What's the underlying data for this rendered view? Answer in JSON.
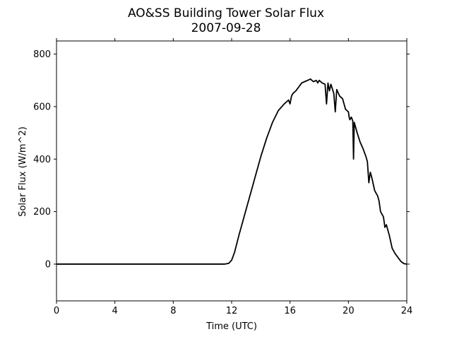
{
  "chart_data": {
    "type": "line",
    "title": "AO&SS Building Tower Solar Flux",
    "subtitle": "2007-09-28",
    "xlabel": "Time (UTC)",
    "ylabel": "Solar Flux (W/m^2)",
    "xlim": [
      0,
      24
    ],
    "ylim": [
      -140,
      850
    ],
    "xticks": [
      0,
      4,
      8,
      12,
      16,
      20,
      24
    ],
    "yticks": [
      0,
      200,
      400,
      600,
      800
    ],
    "grid": false,
    "line_color": "#000000",
    "series": [
      {
        "x": [
          0,
          4,
          8,
          11.5,
          11.8,
          12.0,
          12.2,
          12.5,
          12.8,
          13.2,
          13.6,
          14.0,
          14.4,
          14.8,
          15.2,
          15.6,
          15.9,
          16.0,
          16.1,
          16.2,
          16.4,
          16.6,
          16.8,
          17.0,
          17.2,
          17.4,
          17.6,
          17.8,
          17.9,
          18.0,
          18.2,
          18.4,
          18.5,
          18.6,
          18.7,
          18.8,
          19.0,
          19.1,
          19.2,
          19.4,
          19.6,
          19.8,
          20.0,
          20.05,
          20.1,
          20.2,
          20.3,
          20.35,
          20.4,
          20.6,
          20.8,
          21.0,
          21.2,
          21.3,
          21.4,
          21.5,
          21.6,
          21.8,
          22.0,
          22.1,
          22.2,
          22.4,
          22.5,
          22.6,
          22.8,
          23.0,
          23.2,
          23.4,
          23.6,
          23.8,
          24.0
        ],
        "y": [
          0,
          0,
          0,
          0,
          3,
          15,
          45,
          110,
          170,
          250,
          330,
          410,
          480,
          540,
          585,
          610,
          625,
          610,
          640,
          650,
          660,
          675,
          690,
          695,
          700,
          705,
          695,
          700,
          690,
          700,
          690,
          685,
          610,
          690,
          660,
          685,
          650,
          580,
          665,
          640,
          630,
          590,
          580,
          560,
          550,
          560,
          545,
          400,
          540,
          500,
          465,
          440,
          410,
          390,
          310,
          350,
          330,
          280,
          260,
          240,
          200,
          180,
          140,
          150,
          110,
          60,
          40,
          25,
          10,
          2,
          0
        ]
      }
    ]
  }
}
